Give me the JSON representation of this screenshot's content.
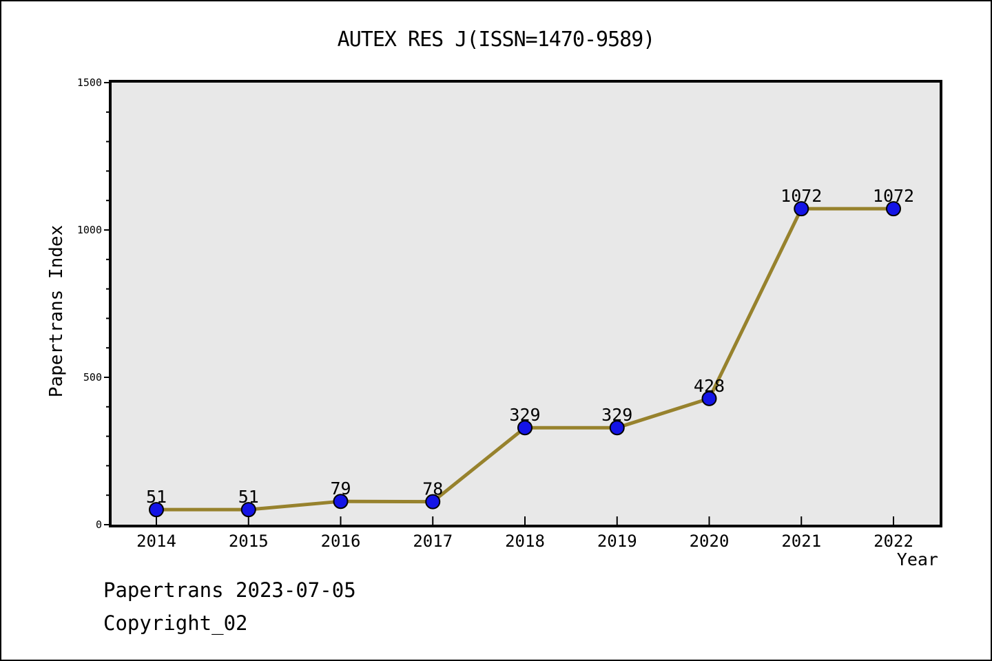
{
  "title": "AUTEX RES J(ISSN=1470-9589)",
  "footer": {
    "line1": "Papertrans 2023-07-05",
    "line2": "Copyright_02"
  },
  "chart_data": {
    "type": "line",
    "title": "AUTEX RES J(ISSN=1470-9589)",
    "x": [
      2014,
      2015,
      2016,
      2017,
      2018,
      2019,
      2020,
      2021,
      2022
    ],
    "values": [
      51,
      51,
      79,
      78,
      329,
      329,
      428,
      1072,
      1072
    ],
    "series_name": "Papertrans Index",
    "xlabel": "Year",
    "ylabel": "Papertrans Index",
    "ylim": [
      0,
      1500
    ],
    "y_ticks": [
      0,
      500,
      1000,
      1500
    ],
    "y_minor_step": 100,
    "grid": false,
    "legend": "none",
    "data_labels_shown": true,
    "colors": {
      "line": "#97822d",
      "marker_fill": "#1414e6",
      "marker_edge": "#000000",
      "plot_background": "#e8e8e8",
      "figure_background": "#ffffff",
      "axis": "#000000",
      "text": "#000000"
    }
  }
}
